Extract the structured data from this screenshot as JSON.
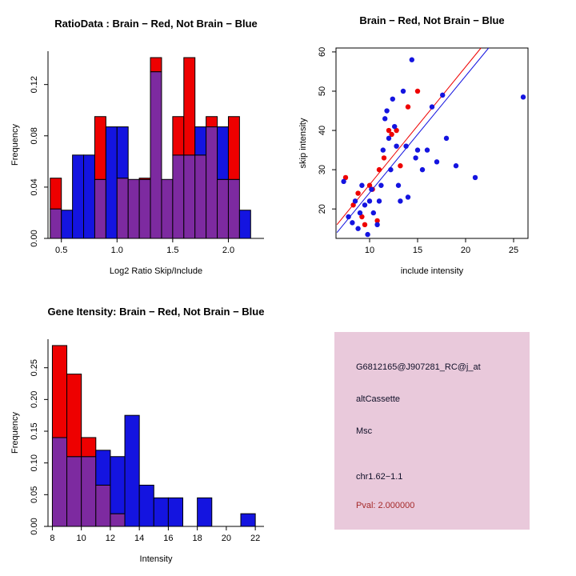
{
  "colors": {
    "red": "#EE0000",
    "blue": "#1414E0",
    "purple": "#7D2AA0",
    "axis": "#000000",
    "info_box_bg": "#E9C9DB",
    "info_text": "#101028",
    "pval_text": "#A52A2A"
  },
  "chart_data": [
    {
      "id": "ratio_hist",
      "type": "bar",
      "variant": "overlapping-histogram",
      "title": "RatioData : Brain − Red, Not Brain − Blue",
      "xlabel": "Log2 Ratio Skip/Include",
      "ylabel": "Frequency",
      "bin_start": 0.4,
      "bin_width": 0.1,
      "xlim": [
        0.38,
        2.32
      ],
      "ylim": [
        0,
        0.146
      ],
      "xticks": [
        0.5,
        1.0,
        1.5,
        2.0
      ],
      "xtick_labels": [
        "0.5",
        "1.0",
        "1.5",
        "2.0"
      ],
      "yticks": [
        0,
        0.04,
        0.08,
        0.12
      ],
      "ytick_labels": [
        "0.00",
        "0.04",
        "0.08",
        "0.12"
      ],
      "series": [
        {
          "name": "Brain (red)",
          "color": "red",
          "values": [
            0.047,
            0,
            0,
            0,
            0.095,
            0,
            0.047,
            0.046,
            0.047,
            0.141,
            0.046,
            0.095,
            0.141,
            0.065,
            0.095,
            0.046,
            0.095,
            0
          ]
        },
        {
          "name": "Not Brain (blue)",
          "color": "blue",
          "values": [
            0.023,
            0.022,
            0.065,
            0.065,
            0.046,
            0.087,
            0.087,
            0.046,
            0.046,
            0.13,
            0.046,
            0.065,
            0.065,
            0.087,
            0.087,
            0.087,
            0.046,
            0.022
          ]
        }
      ]
    },
    {
      "id": "intensity_scatter",
      "type": "scatter",
      "title": "Brain − Red, Not Brain − Blue",
      "xlabel": "include intensity",
      "ylabel": "skip intensity",
      "xlim": [
        6.5,
        26.5
      ],
      "ylim": [
        12.5,
        61
      ],
      "xticks": [
        10,
        15,
        20,
        25
      ],
      "xtick_labels": [
        "10",
        "15",
        "20",
        "25"
      ],
      "yticks": [
        20,
        30,
        40,
        50,
        60
      ],
      "ytick_labels": [
        "20",
        "30",
        "40",
        "50",
        "60"
      ],
      "series": [
        {
          "name": "Brain",
          "color": "red",
          "points": [
            [
              7.5,
              28
            ],
            [
              8.3,
              21
            ],
            [
              8.8,
              24
            ],
            [
              9.2,
              18
            ],
            [
              9.5,
              16
            ],
            [
              10,
              26
            ],
            [
              10.3,
              25
            ],
            [
              10.8,
              17
            ],
            [
              11,
              30
            ],
            [
              11.5,
              33
            ],
            [
              12,
              40
            ],
            [
              12.3,
              39
            ],
            [
              12.8,
              40
            ],
            [
              13.2,
              31
            ],
            [
              14,
              46
            ],
            [
              15,
              50
            ]
          ]
        },
        {
          "name": "Not Brain",
          "color": "blue",
          "points": [
            [
              7.3,
              27
            ],
            [
              7.8,
              18
            ],
            [
              8.2,
              16.5
            ],
            [
              8.5,
              22
            ],
            [
              8.8,
              15
            ],
            [
              9,
              19
            ],
            [
              9.2,
              26
            ],
            [
              9.5,
              21
            ],
            [
              9.8,
              13.5
            ],
            [
              10,
              22
            ],
            [
              10.2,
              25
            ],
            [
              10.4,
              19
            ],
            [
              10.8,
              16
            ],
            [
              11,
              22
            ],
            [
              11.2,
              26
            ],
            [
              11.4,
              35
            ],
            [
              11.6,
              43
            ],
            [
              11.8,
              45
            ],
            [
              12,
              38
            ],
            [
              12.2,
              30
            ],
            [
              12.4,
              48
            ],
            [
              12.6,
              41
            ],
            [
              12.8,
              36
            ],
            [
              13,
              26
            ],
            [
              13.2,
              22
            ],
            [
              13.5,
              50
            ],
            [
              13.8,
              36
            ],
            [
              14,
              23
            ],
            [
              14.4,
              58
            ],
            [
              14.8,
              33
            ],
            [
              15,
              35
            ],
            [
              15.5,
              30
            ],
            [
              16,
              35
            ],
            [
              16.5,
              46
            ],
            [
              17,
              32
            ],
            [
              17.6,
              49
            ],
            [
              18,
              38
            ],
            [
              19,
              31
            ],
            [
              21,
              28
            ],
            [
              26,
              48.5
            ]
          ]
        }
      ],
      "lines": [
        {
          "name": "brain-fit-line",
          "color": "red",
          "x1": 6.6,
          "y1": 16,
          "x2": 21.6,
          "y2": 61
        },
        {
          "name": "notbrain-fit-line",
          "color": "blue",
          "x1": 6.6,
          "y1": 14,
          "x2": 22.4,
          "y2": 61
        }
      ]
    },
    {
      "id": "gene_hist",
      "type": "bar",
      "variant": "overlapping-histogram",
      "title": "Gene Itensity: Brain − Red, Not Brain − Blue",
      "xlabel": "Intensity",
      "ylabel": "Frequency",
      "bin_start": 8,
      "bin_width": 1,
      "xlim": [
        7.7,
        22.6
      ],
      "ylim": [
        0,
        0.295
      ],
      "xticks": [
        8,
        10,
        12,
        14,
        16,
        18,
        20,
        22
      ],
      "xtick_labels": [
        "8",
        "10",
        "12",
        "14",
        "16",
        "18",
        "20",
        "22"
      ],
      "yticks": [
        0,
        0.05,
        0.1,
        0.15,
        0.2,
        0.25
      ],
      "ytick_labels": [
        "0.00",
        "0.05",
        "0.10",
        "0.15",
        "0.20",
        "0.25"
      ],
      "series": [
        {
          "name": "Brain (red)",
          "color": "red",
          "values": [
            0.285,
            0.24,
            0.14,
            0.065,
            0.02,
            0,
            0,
            0,
            0,
            0,
            0,
            0,
            0,
            0
          ]
        },
        {
          "name": "Not Brain (blue)",
          "color": "blue",
          "values": [
            0.14,
            0.11,
            0.11,
            0.12,
            0.11,
            0.175,
            0.065,
            0.045,
            0.045,
            0,
            0.045,
            0,
            0,
            0.02
          ]
        }
      ]
    }
  ],
  "info_box": {
    "gene_id": "G6812165@J907281_RC@j_at",
    "event_type": "altCassette",
    "gene_symbol": "Msc",
    "location": "chr1.62−1.1",
    "pval": "Pval: 2.000000"
  }
}
